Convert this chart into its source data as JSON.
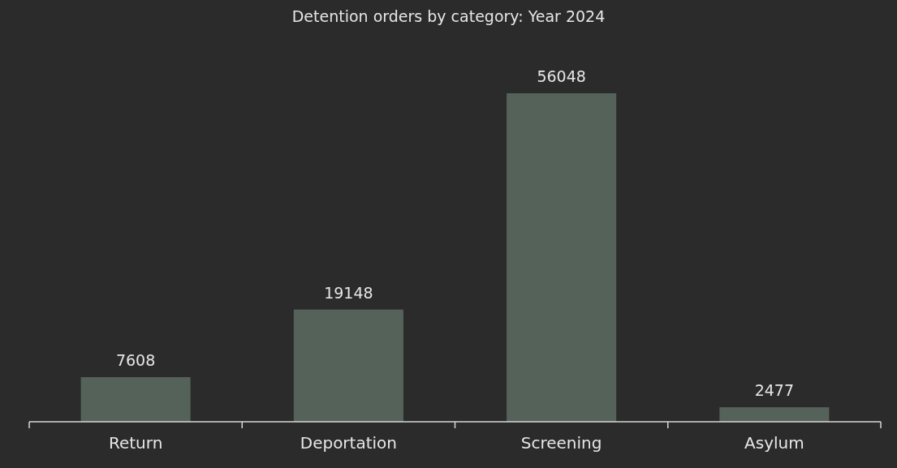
{
  "chart_data": {
    "type": "bar",
    "title": "Detention orders by category: Year 2024",
    "categories": [
      "Return",
      "Deportation",
      "Screening",
      "Asylum"
    ],
    "values": [
      7608,
      19148,
      56048,
      2477
    ],
    "color": "#556259",
    "data_labels": true
  }
}
